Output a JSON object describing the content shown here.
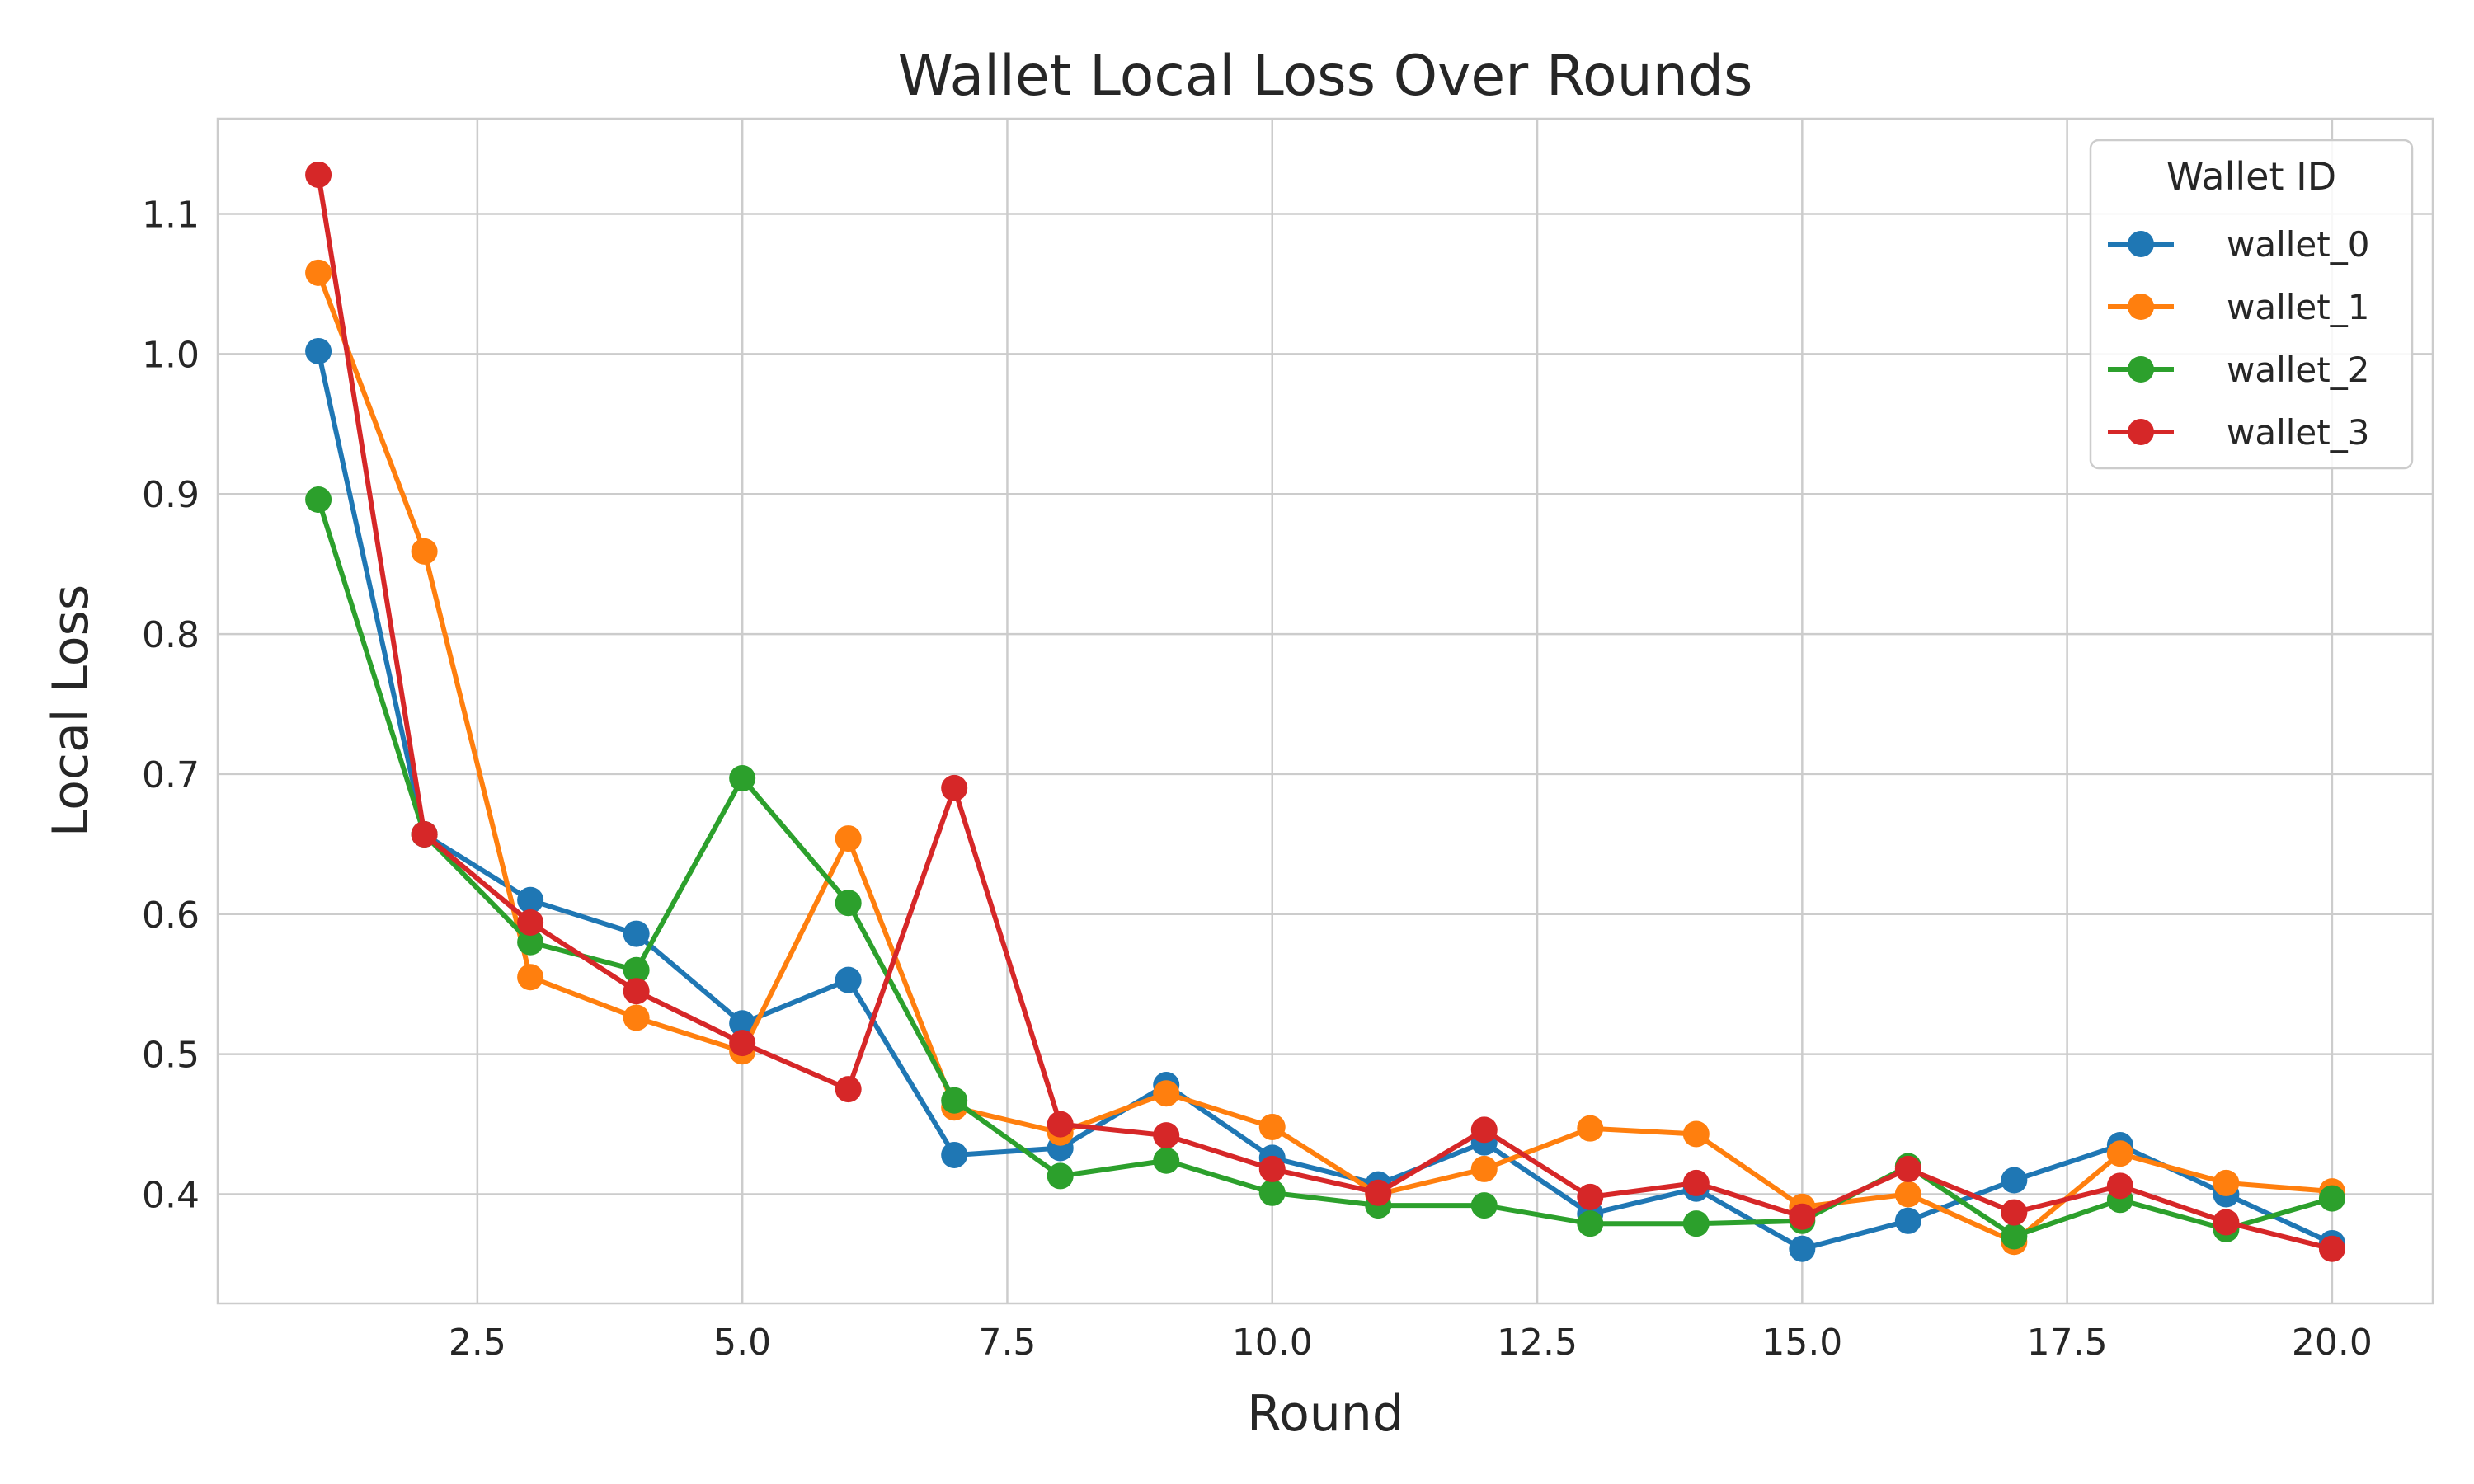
{
  "chart_data": {
    "type": "line",
    "title": "Wallet Local Loss Over Rounds",
    "xlabel": "Round",
    "ylabel": "Local Loss",
    "xlim": [
      0.05,
      20.95
    ],
    "ylim": [
      0.322,
      1.168
    ],
    "xticks": [
      2.5,
      5.0,
      7.5,
      10.0,
      12.5,
      15.0,
      17.5,
      20.0
    ],
    "xtick_labels": [
      "2.5",
      "5.0",
      "7.5",
      "10.0",
      "12.5",
      "15.0",
      "17.5",
      "20.0"
    ],
    "yticks": [
      0.4,
      0.5,
      0.6,
      0.7,
      0.8,
      0.9,
      1.0,
      1.1
    ],
    "ytick_labels": [
      "0.4",
      "0.5",
      "0.6",
      "0.7",
      "0.8",
      "0.9",
      "1.0",
      "1.1"
    ],
    "grid": true,
    "legend": {
      "title": "Wallet ID",
      "position": "top-right"
    },
    "x": [
      1,
      2,
      3,
      4,
      5,
      6,
      7,
      8,
      9,
      10,
      11,
      12,
      13,
      14,
      15,
      16,
      17,
      18,
      19,
      20
    ],
    "series": [
      {
        "name": "wallet_0",
        "color": "#1f77b4",
        "values": [
          1.002,
          0.657,
          0.61,
          0.586,
          0.522,
          0.553,
          0.428,
          0.433,
          0.478,
          0.426,
          0.407,
          0.437,
          0.386,
          0.404,
          0.361,
          0.381,
          0.41,
          0.435,
          0.4,
          0.365
        ]
      },
      {
        "name": "wallet_1",
        "color": "#ff7f0e",
        "values": [
          1.058,
          0.859,
          0.555,
          0.526,
          0.502,
          0.654,
          0.462,
          0.444,
          0.472,
          0.448,
          0.4,
          0.418,
          0.447,
          0.443,
          0.391,
          0.4,
          0.366,
          0.429,
          0.408,
          0.402
        ]
      },
      {
        "name": "wallet_2",
        "color": "#2ca02c",
        "values": [
          0.896,
          0.657,
          0.58,
          0.56,
          0.697,
          0.608,
          0.467,
          0.413,
          0.424,
          0.401,
          0.392,
          0.392,
          0.379,
          0.379,
          0.381,
          0.42,
          0.37,
          0.396,
          0.375,
          0.397
        ]
      },
      {
        "name": "wallet_3",
        "color": "#d62728",
        "values": [
          1.128,
          0.657,
          0.594,
          0.545,
          0.508,
          0.475,
          0.69,
          0.45,
          0.442,
          0.418,
          0.401,
          0.446,
          0.398,
          0.408,
          0.384,
          0.418,
          0.387,
          0.406,
          0.38,
          0.361
        ]
      }
    ]
  }
}
